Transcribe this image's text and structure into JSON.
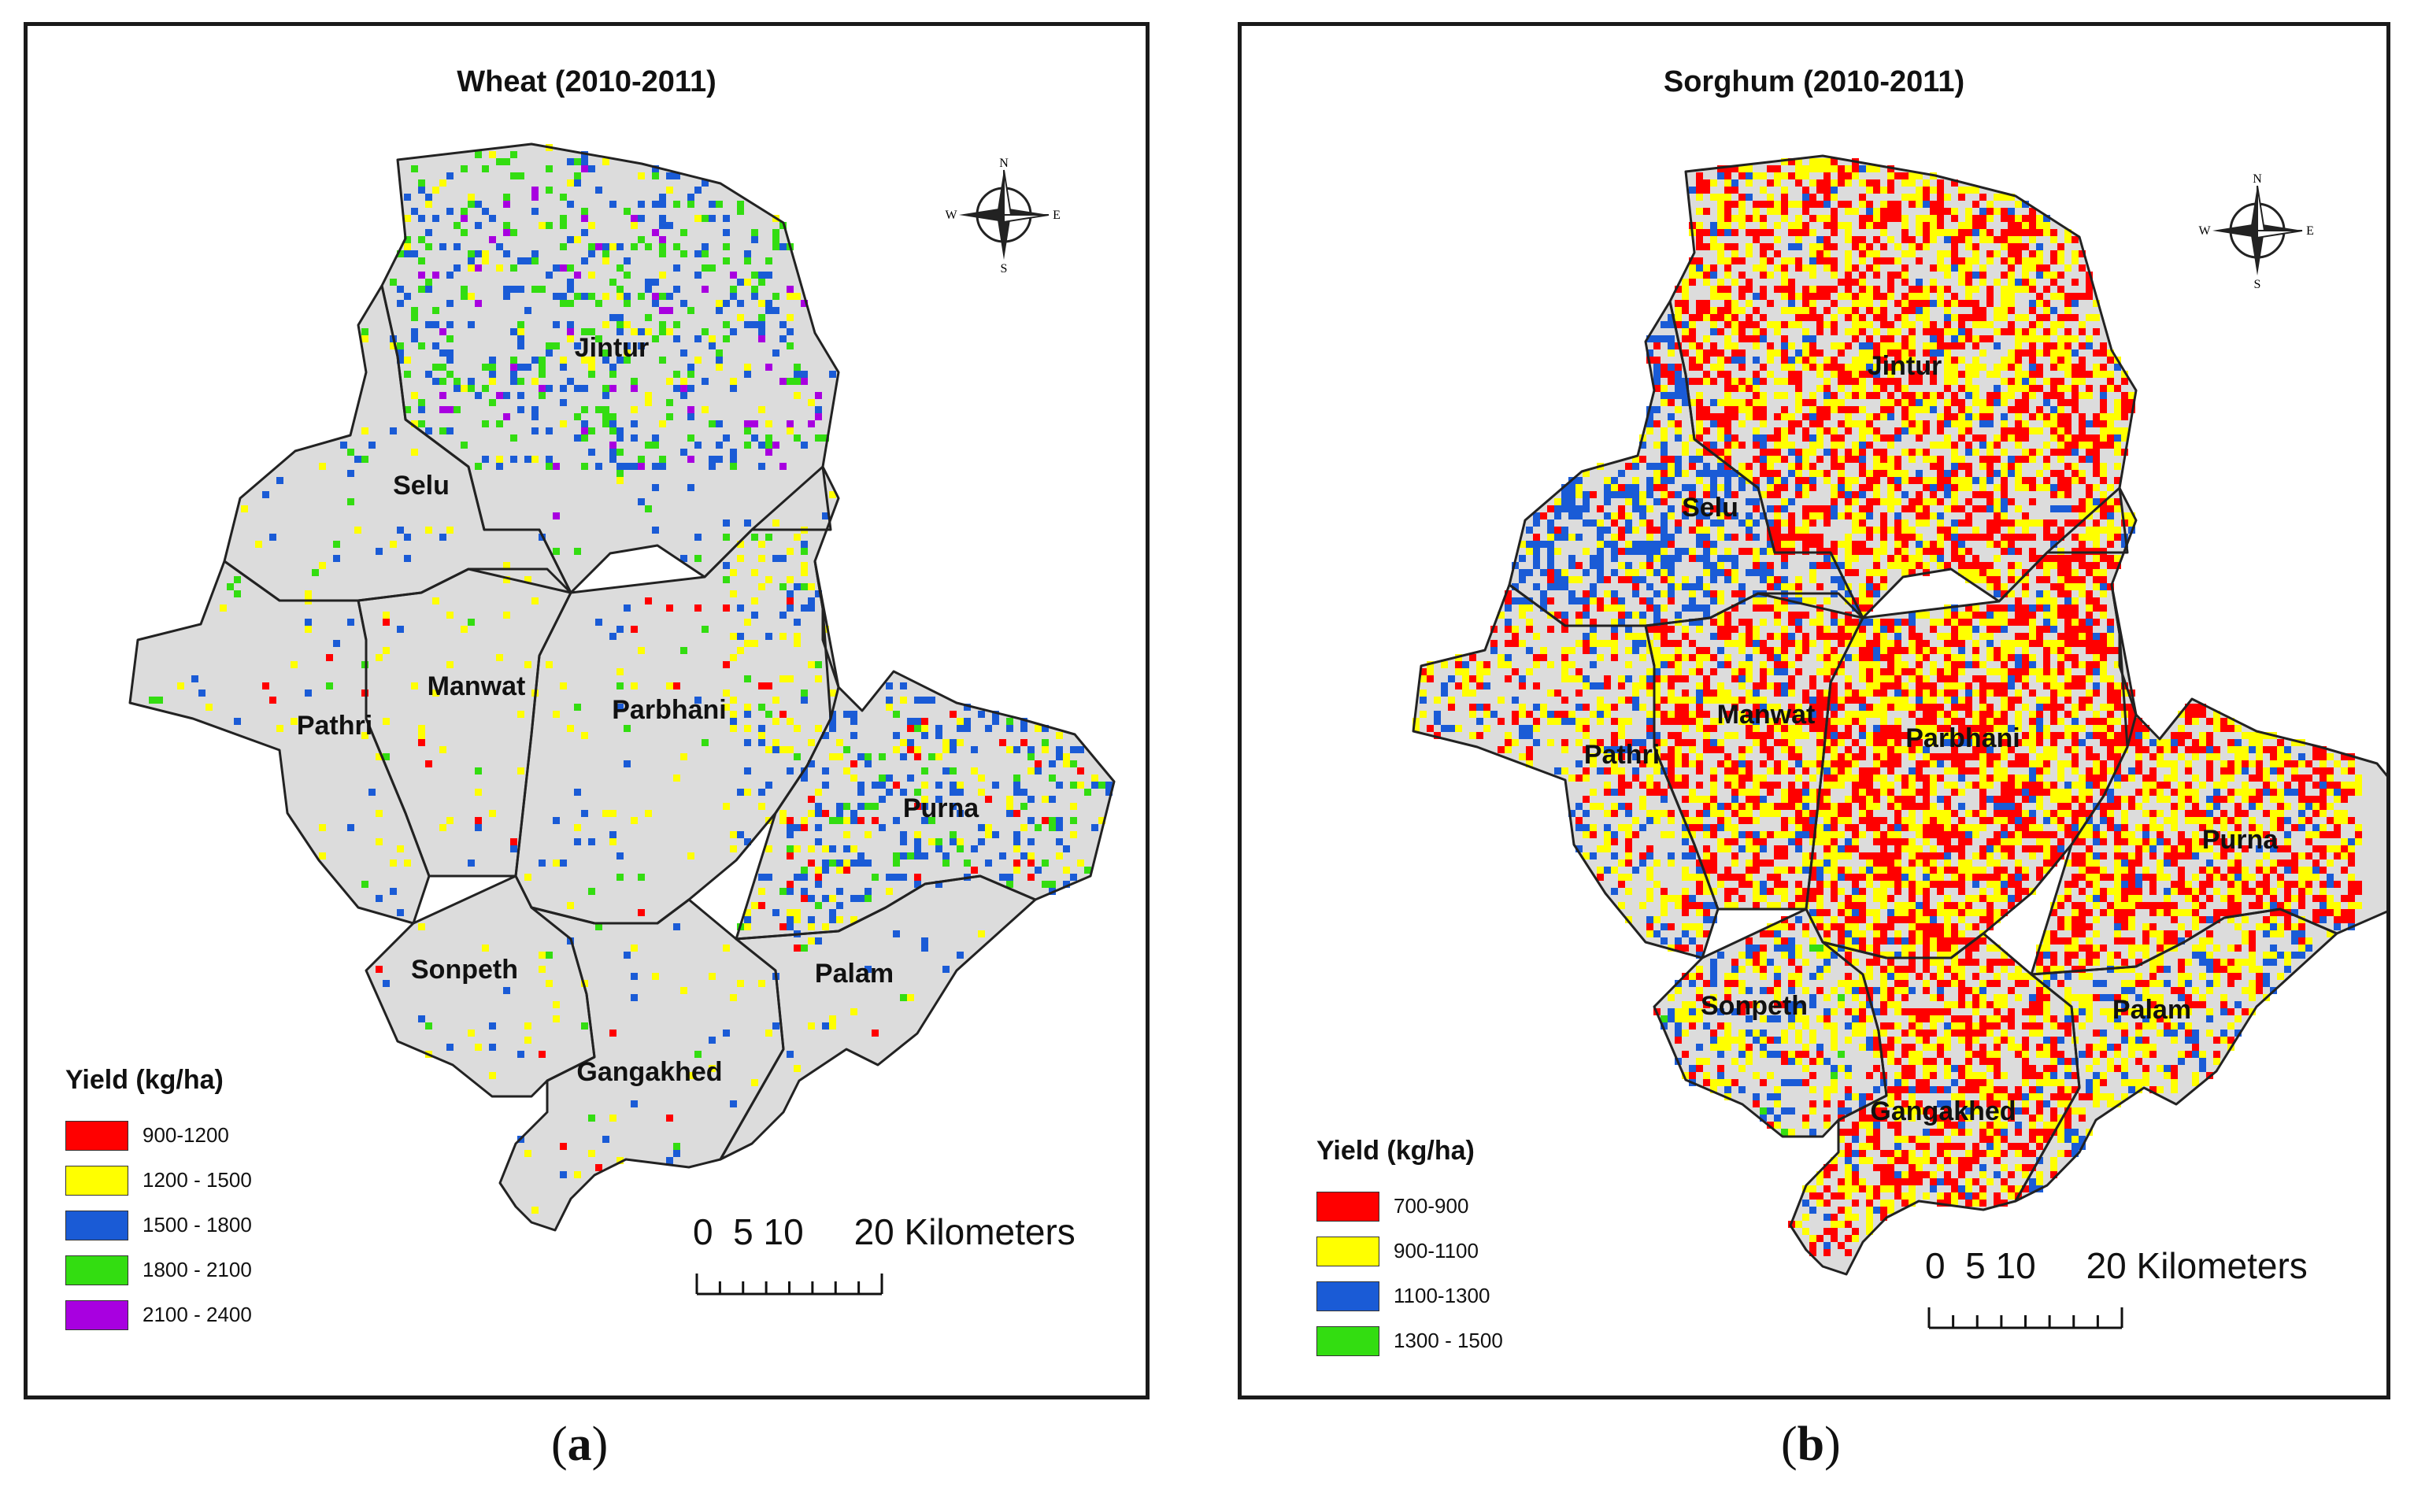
{
  "panels": [
    {
      "id": "a",
      "title": "Wheat (2010-2011)",
      "caption_letter": "a",
      "districts": [
        "Jintur",
        "Selu",
        "Manwat",
        "Pathri",
        "Parbhani",
        "Purna",
        "Sonpeth",
        "Palam",
        "Gangakhed"
      ],
      "legend": {
        "title": "Yield (kg/ha)",
        "classes": [
          {
            "label": "900-1200",
            "color": "#ff0000"
          },
          {
            "label": "1200 - 1500",
            "color": "#ffff00"
          },
          {
            "label": "1500 - 1800",
            "color": "#1a5bd6"
          },
          {
            "label": "1800 - 2100",
            "color": "#33dd11"
          },
          {
            "label": "2100 - 2400",
            "color": "#a800e0"
          }
        ]
      },
      "scale_text": "0  5 10     20 Kilometers"
    },
    {
      "id": "b",
      "title": "Sorghum (2010-2011)",
      "caption_letter": "b",
      "districts": [
        "Jintur",
        "Selu",
        "Manwat",
        "Pathri",
        "Parbhani",
        "Purna",
        "Sonpeth",
        "Palam",
        "Gangakhed"
      ],
      "legend": {
        "title": "Yield (kg/ha)",
        "classes": [
          {
            "label": "700-900",
            "color": "#ff0000"
          },
          {
            "label": "900-1100",
            "color": "#ffff00"
          },
          {
            "label": "1100-1300",
            "color": "#1a5bd6"
          },
          {
            "label": "1300 - 1500",
            "color": "#33dd11"
          }
        ]
      },
      "scale_text": "0  5 10     20 Kilometers"
    }
  ],
  "compass": {
    "n": "N",
    "s": "S",
    "e": "E",
    "w": "W"
  },
  "colors": {
    "land": "#dcdcdc",
    "boundary": "#222222"
  }
}
